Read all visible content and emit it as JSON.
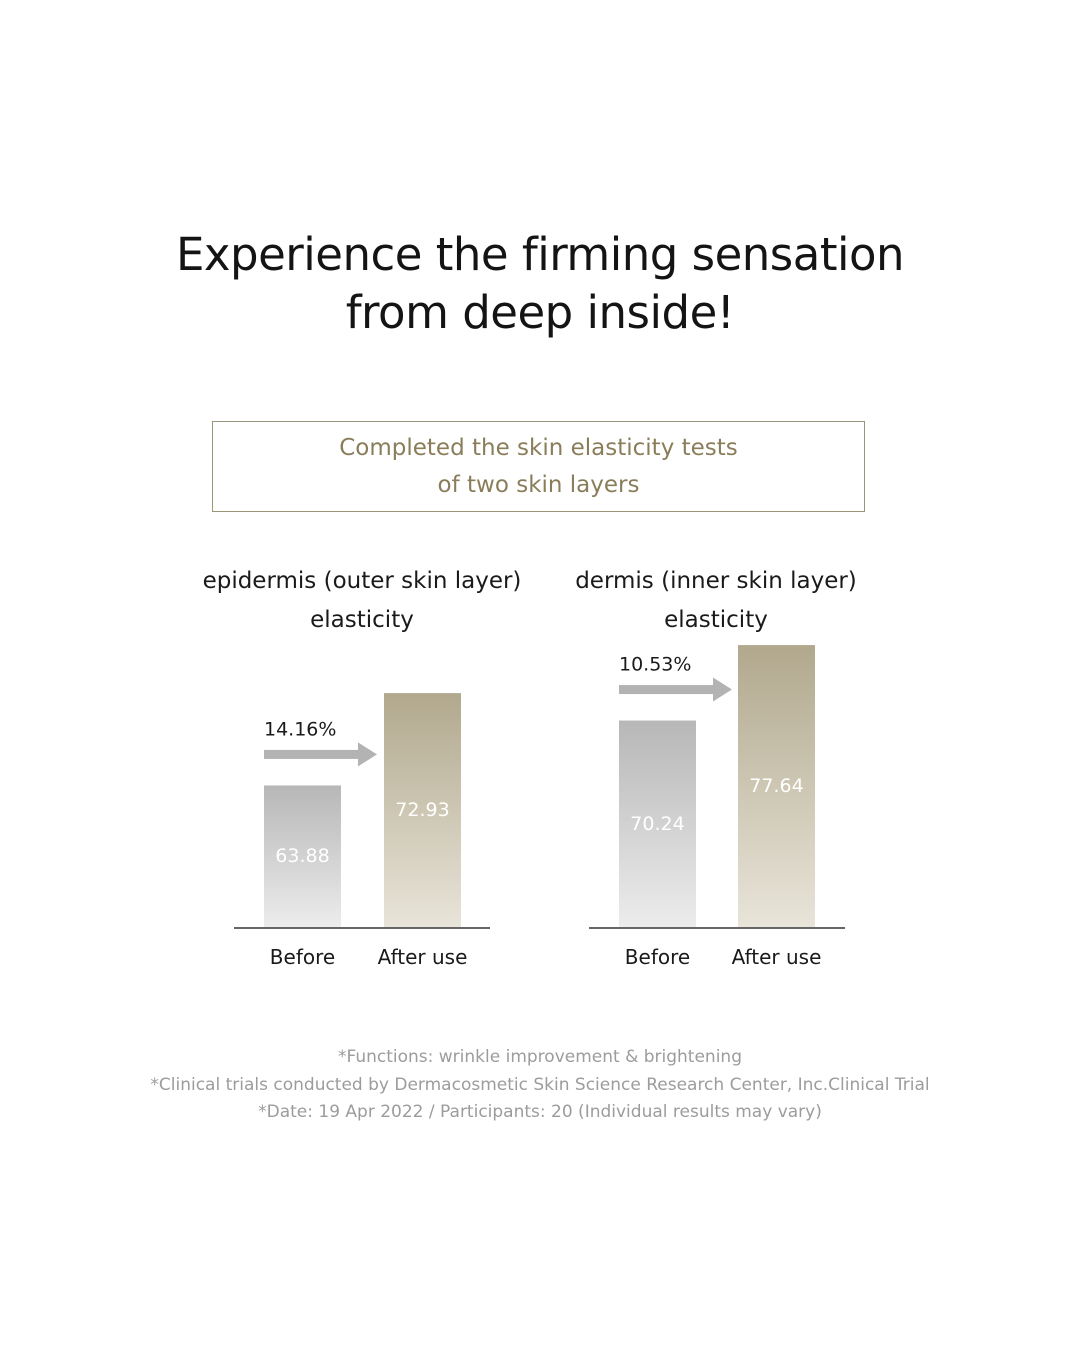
{
  "headline": {
    "line1": "Experience the firming sensation",
    "line2": "from deep inside!"
  },
  "subtitle": {
    "line1": "Completed the skin elasticity tests",
    "line2": "of two skin layers"
  },
  "colors": {
    "before_top": "#b7b7b7",
    "before_bottom": "#ececec",
    "after_top": "#b1a88d",
    "after_bottom": "#e8e4d9",
    "arrow": "#b3b3b3",
    "accent_text": "#8a7d5a",
    "footnote": "#9c9c9c"
  },
  "chart_data": [
    {
      "type": "bar",
      "title": [
        "epidermis (outer skin layer)",
        "elasticity"
      ],
      "categories": [
        "Before",
        "After use"
      ],
      "values": [
        63.88,
        72.93
      ],
      "value_labels": [
        "63.88",
        "72.93"
      ],
      "change_label": "14.16%",
      "grid": false
    },
    {
      "type": "bar",
      "title": [
        "dermis (inner skin layer)",
        "elasticity"
      ],
      "categories": [
        "Before",
        "After use"
      ],
      "values": [
        70.24,
        77.64
      ],
      "value_labels": [
        "70.24",
        "77.64"
      ],
      "change_label": "10.53%",
      "grid": false
    }
  ],
  "footnotes": [
    "*Functions: wrinkle improvement & brightening",
    "*Clinical trials conducted by Dermacosmetic Skin Science Research Center, Inc.Clinical Trial",
    "*Date: 19 Apr 2022 / Participants: 20 (Individual results may vary)"
  ]
}
